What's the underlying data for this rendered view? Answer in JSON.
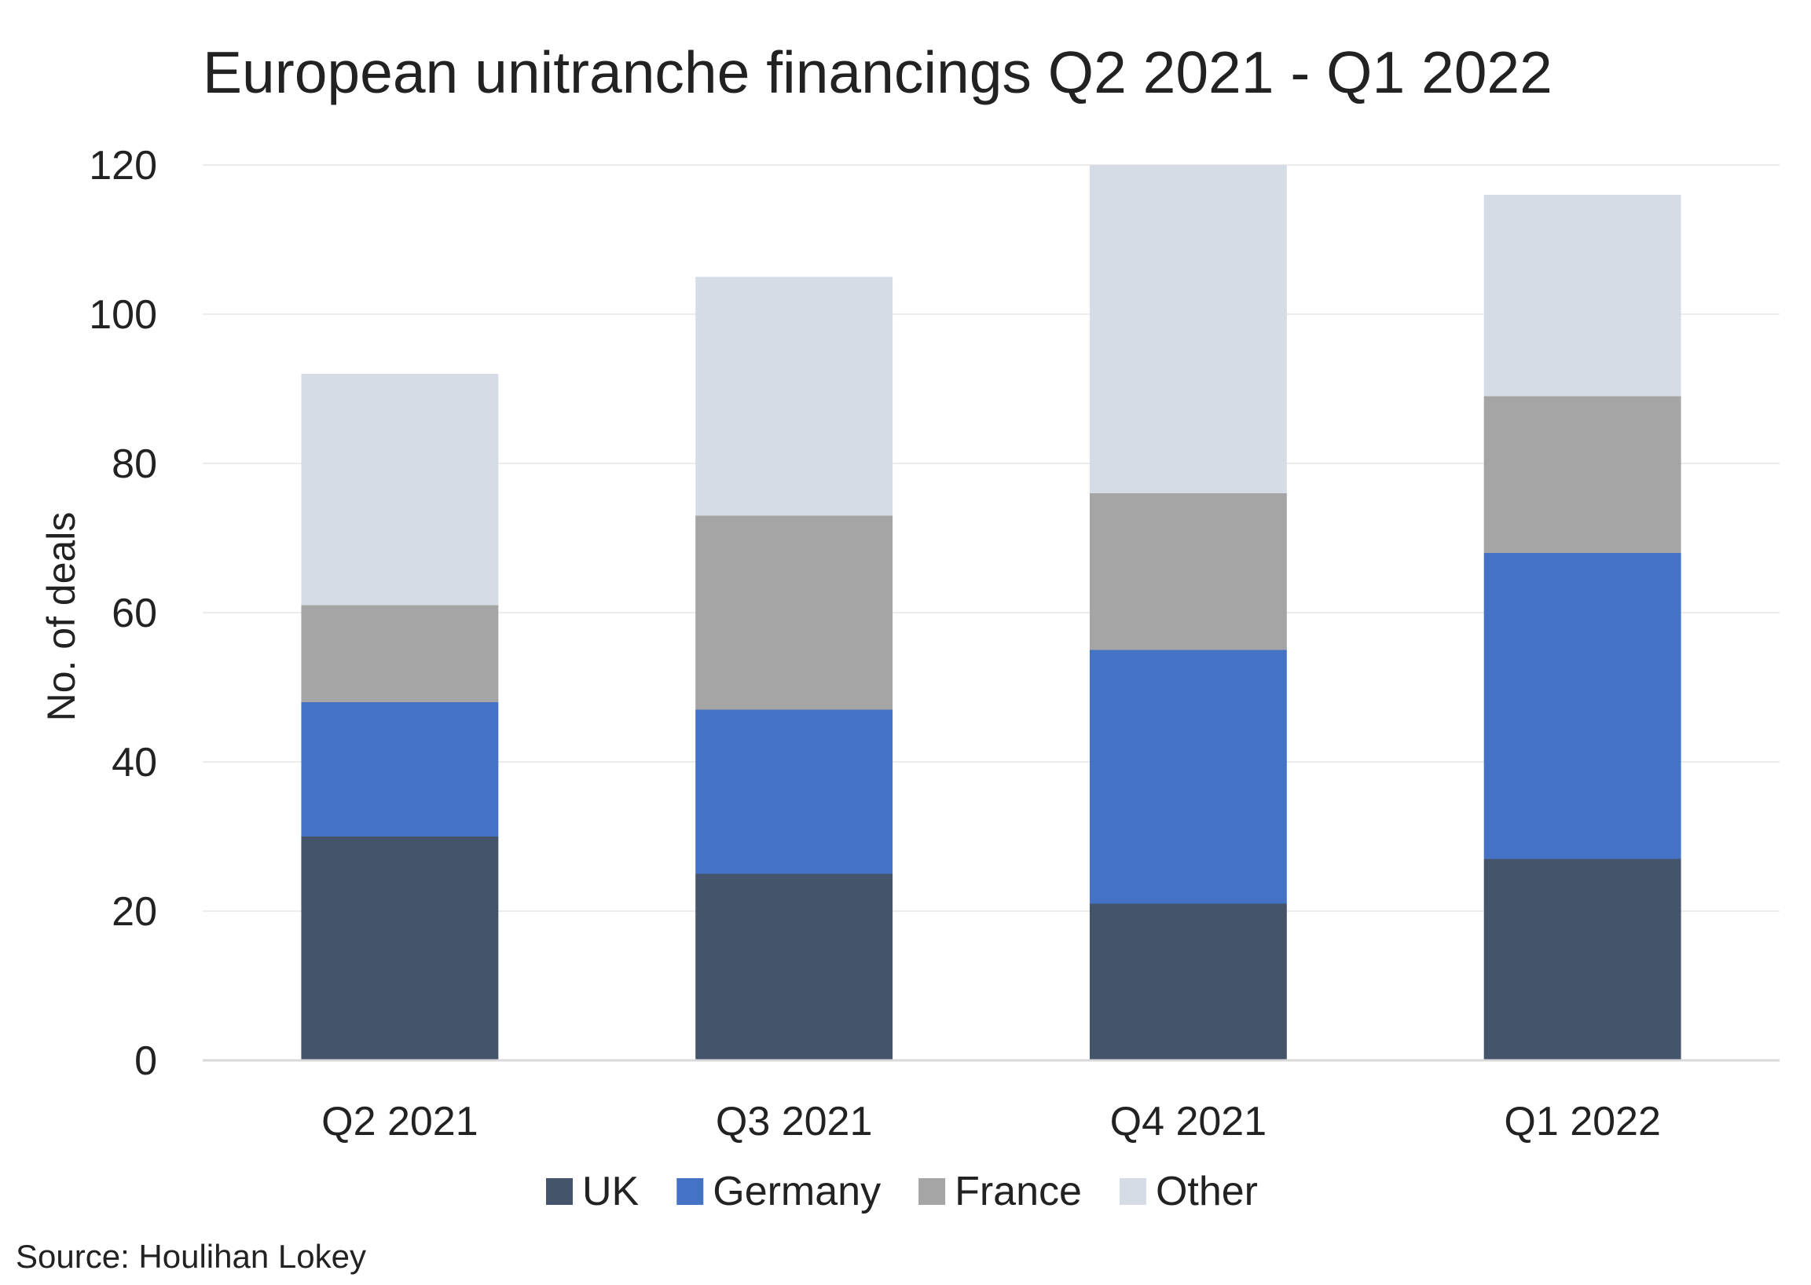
{
  "chart_data": {
    "type": "bar",
    "stacked": true,
    "title": "European unitranche financings Q2 2021 - Q1 2022",
    "xlabel": "",
    "ylabel": "No. of deals",
    "ylim": [
      0,
      120
    ],
    "yticks": [
      0,
      20,
      40,
      60,
      80,
      100,
      120
    ],
    "categories": [
      "Q2 2021",
      "Q3 2021",
      "Q4 2021",
      "Q1 2022"
    ],
    "series": [
      {
        "name": "UK",
        "color": "#44546a",
        "values": [
          30,
          25,
          21,
          27
        ]
      },
      {
        "name": "Germany",
        "color": "#4472c4",
        "values": [
          18,
          22,
          34,
          41
        ]
      },
      {
        "name": "France",
        "color": "#a5a5a5",
        "values": [
          13,
          26,
          21,
          21
        ]
      },
      {
        "name": "Other",
        "color": "#d6dce5",
        "values": [
          31,
          32,
          44,
          27
        ]
      }
    ],
    "grid": true,
    "legend_position": "bottom",
    "source": "Source: Houlihan Lokey"
  }
}
